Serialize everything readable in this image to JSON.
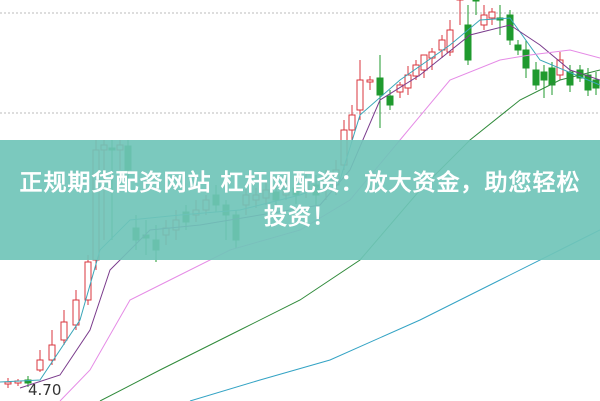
{
  "banner": {
    "title": "正规期货配资网站 杠杆网配资：放大资金，助您轻松投资！"
  },
  "chart": {
    "price_label": "4.70",
    "colors": {
      "up": "#d9363e",
      "down": "#1f9a2e",
      "ma5": "#3aa6b9",
      "ma10": "#7a3b8c",
      "ma20": "#e58be6",
      "ma30": "#2f8a3a",
      "ma60": "#33a3c4",
      "banner": "#70c4b8"
    }
  }
}
